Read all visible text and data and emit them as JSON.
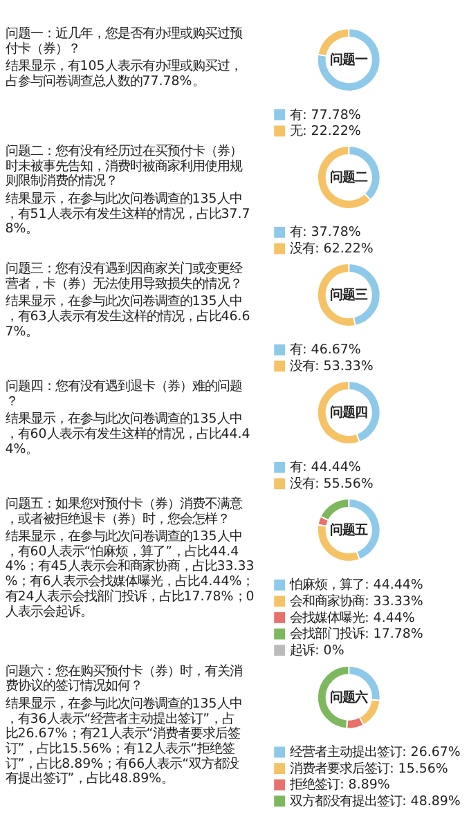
{
  "chart_data": [
    {
      "type": "donut",
      "title": "问题一",
      "categories": [
        "有",
        "无"
      ],
      "values": [
        77.78,
        22.22
      ],
      "value_labels": [
        "77.78%",
        "22.22%"
      ],
      "colors": [
        "#8ec9ea",
        "#f6c266"
      ],
      "legend": "bottom",
      "annotations": [
        "问题一：近几年，您是否有办理或购买过预付卡（券）？",
        "结果显示，有105人表示有办理或购买过，占参与问卷调查总人数的77.78%。"
      ]
    },
    {
      "type": "donut",
      "title": "问题二",
      "categories": [
        "有",
        "没有"
      ],
      "values": [
        37.78,
        62.22
      ],
      "value_labels": [
        "37.78%",
        "62.22%"
      ],
      "colors": [
        "#8ec9ea",
        "#f6c266"
      ],
      "legend": "bottom",
      "annotations": [
        "问题二：您有没有经历过在买预付卡（券）时未被事先告知，消费时被商家利用使用规则限制消费的情况？",
        "结果显示，在参与此次问卷调查的135人中，有51人表示有发生这样的情况，占比37.78%。"
      ]
    },
    {
      "type": "donut",
      "title": "问题三",
      "categories": [
        "有",
        "没有"
      ],
      "values": [
        46.67,
        53.33
      ],
      "value_labels": [
        "46.67%",
        "53.33%"
      ],
      "colors": [
        "#8ec9ea",
        "#f6c266"
      ],
      "legend": "bottom",
      "annotations": [
        "问题三：您有没有遇到因商家关门或变更经营者，卡（券）无法使用导致损失的情况？",
        "结果显示，在参与此次问卷调查的135人中，有63人表示有发生这样的情况，占比46.67%。"
      ]
    },
    {
      "type": "donut",
      "title": "问题四",
      "categories": [
        "有",
        "没有"
      ],
      "values": [
        44.44,
        55.56
      ],
      "value_labels": [
        "44.44%",
        "55.56%"
      ],
      "colors": [
        "#8ec9ea",
        "#f6c266"
      ],
      "legend": "bottom",
      "annotations": [
        "问题四：您有没有遇到退卡（券）难的问题？",
        "结果显示，在参与此次问卷调查的135人中，有60人表示有发生这样的情况，占比44.44%。"
      ]
    },
    {
      "type": "donut",
      "title": "问题五",
      "categories": [
        "怕麻烦，算了",
        "会和商家协商",
        "会找媒体曝光",
        "会找部门投诉",
        "起诉"
      ],
      "values": [
        44.44,
        33.33,
        4.44,
        17.78,
        0
      ],
      "value_labels": [
        "44.44%",
        "33.33%",
        "4.44%",
        "17.78%",
        "0%"
      ],
      "colors": [
        "#8ec9ea",
        "#f6c266",
        "#e8716b",
        "#7db85e",
        "#bbbbbb"
      ],
      "legend": "bottom",
      "annotations": [
        "问题五：如果您对预付卡（券）消费不满意，或者被拒绝退卡（券）时，您会怎样？",
        "结果显示，在参与此次问卷调查的135人中，有60人表示“怕麻烦，算了”，占比44.44%；有45人表示会和商家协商，占比33.33%；有6人表示会找媒体曝光，占比4.44%；有24人表示会找部门投诉，占比17.78%；0人表示会起诉。"
      ]
    },
    {
      "type": "donut",
      "title": "问题六",
      "categories": [
        "经营者主动提出签订",
        "消费者要求后签订",
        "拒绝签订",
        "双方都没有提出签订"
      ],
      "values": [
        26.67,
        15.56,
        8.89,
        48.89
      ],
      "value_labels": [
        "26.67%",
        "15.56%",
        "8.89%",
        "48.89%"
      ],
      "colors": [
        "#8ec9ea",
        "#f6c266",
        "#e8716b",
        "#7db85e"
      ],
      "legend": "bottom",
      "annotations": [
        "问题六：您在购买预付卡（券）时，有关消费协议的签订情况如何？",
        "结果显示，在参与此次问卷调查的135人中，有36人表示“经营者主动提出签订”，占比26.67%；有21人表示“消费者要求后签订”，占比15.56%；有12人表示“拒绝签订”，占比8.89%；有66人表示“双方都没有提出签订”，占比48.89%。"
      ]
    }
  ]
}
